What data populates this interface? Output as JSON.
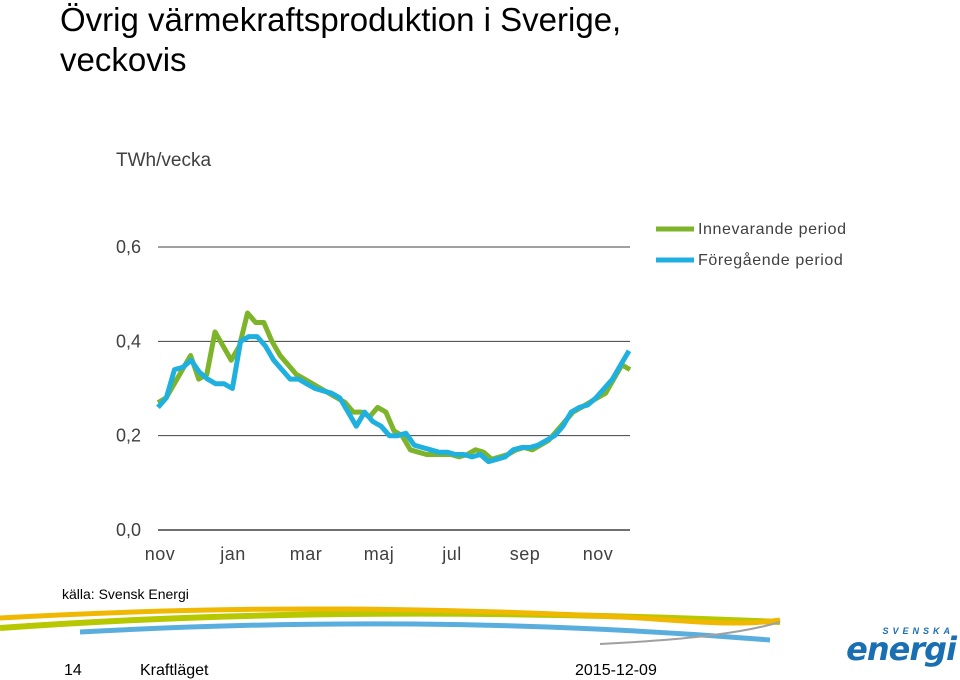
{
  "title_line1": "Övrig värmekraftsproduktion i Sverige,",
  "title_line2": "veckovis",
  "unit_label": "TWh/vecka",
  "source": "källa: Svensk Energi",
  "footer": {
    "page_number": "14",
    "name": "Kraftläget",
    "date": "2015-12-09"
  },
  "logo": {
    "top": "SVENSKA",
    "main": "energi"
  },
  "colors": {
    "current": "#7db42a",
    "previous": "#1fb0e0",
    "grid": "#404040"
  },
  "chart_data": {
    "type": "line",
    "title": "Övrig värmekraftsproduktion i Sverige, veckovis",
    "ylabel": "TWh/vecka",
    "ylim": [
      0,
      0.6
    ],
    "yticks": [
      0.0,
      0.2,
      0.4,
      0.6
    ],
    "ytick_labels": [
      "0,0",
      "0,2",
      "0,4",
      "0,6"
    ],
    "xtick_labels": [
      "nov",
      "jan",
      "mar",
      "maj",
      "jul",
      "sep",
      "nov"
    ],
    "legend": "top-right",
    "series": [
      {
        "name": "Innevarande period",
        "color": "#7db42a",
        "values": [
          0.27,
          0.28,
          0.31,
          0.34,
          0.37,
          0.32,
          0.33,
          0.42,
          0.39,
          0.36,
          0.39,
          0.46,
          0.44,
          0.44,
          0.4,
          0.37,
          0.35,
          0.33,
          0.32,
          0.31,
          0.3,
          0.29,
          0.28,
          0.27,
          0.25,
          0.25,
          0.24,
          0.26,
          0.25,
          0.21,
          0.2,
          0.17,
          0.165,
          0.16,
          0.16,
          0.16,
          0.16,
          0.155,
          0.16,
          0.17,
          0.165,
          0.15,
          0.155,
          0.16,
          0.17,
          0.175,
          0.17,
          0.18,
          0.19,
          0.21,
          0.23,
          0.25,
          0.26,
          0.27,
          0.28,
          0.29,
          0.32,
          0.35,
          0.34
        ]
      },
      {
        "name": "Föregående period",
        "color": "#1fb0e0",
        "values": [
          0.26,
          0.28,
          0.34,
          0.345,
          0.36,
          0.335,
          0.32,
          0.31,
          0.31,
          0.3,
          0.4,
          0.41,
          0.41,
          0.39,
          0.36,
          0.34,
          0.32,
          0.32,
          0.31,
          0.3,
          0.295,
          0.29,
          0.28,
          0.25,
          0.22,
          0.25,
          0.23,
          0.22,
          0.2,
          0.2,
          0.205,
          0.18,
          0.175,
          0.17,
          0.165,
          0.165,
          0.16,
          0.16,
          0.155,
          0.16,
          0.145,
          0.15,
          0.155,
          0.17,
          0.175,
          0.175,
          0.18,
          0.19,
          0.2,
          0.22,
          0.25,
          0.26,
          0.265,
          0.28,
          0.3,
          0.32,
          0.35,
          0.38
        ]
      }
    ]
  }
}
